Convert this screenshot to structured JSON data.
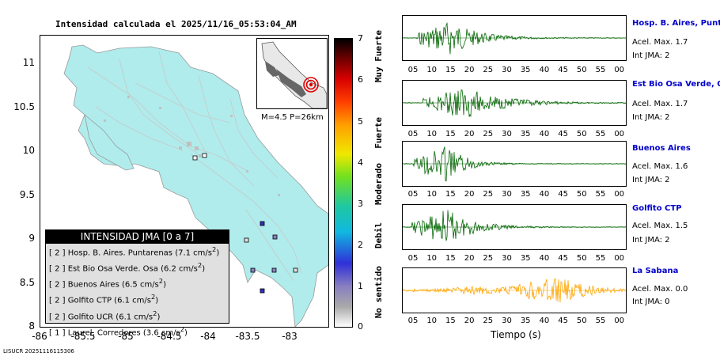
{
  "title": "Intensidad calculada el 2025/11/16_05:53:04_AM",
  "map": {
    "y_ticks": [
      "11",
      "10.5",
      "10",
      "9.5",
      "9",
      "8.5",
      "8"
    ],
    "x_ticks": [
      "-86",
      "-85.5",
      "-85",
      "-84.5",
      "-84",
      "-83.5",
      "-83"
    ],
    "inset_label": "M=4.5 P=26km"
  },
  "legend": {
    "title": "INTENSIDAD JMA [0 a 7]",
    "rows": [
      {
        "jma": "[ 2 ]",
        "text": "Hosp. B. Aires. Puntarenas (7.1 cm/s",
        "exp": "2",
        "close": ")"
      },
      {
        "jma": "[ 2 ]",
        "text": "Est Bio Osa Verde. Osa (6.2 cm/s",
        "exp": "2",
        "close": ")"
      },
      {
        "jma": "[ 2 ]",
        "text": "Buenos Aires (6.5 cm/s",
        "exp": "2",
        "close": ")"
      },
      {
        "jma": "[ 2 ]",
        "text": "Golfito CTP (6.1 cm/s",
        "exp": "2",
        "close": ")"
      },
      {
        "jma": "[ 2 ]",
        "text": "Golfito UCR (6.1 cm/s",
        "exp": "2",
        "close": ")"
      },
      {
        "jma": "[ 1 ]",
        "text": "Laurel. Corredores (3.6 cm/s",
        "exp": "2",
        "close": ")"
      }
    ]
  },
  "colorbar": {
    "ticks": [
      "7",
      "6",
      "5",
      "4",
      "3",
      "2",
      "1",
      "0"
    ],
    "categories": [
      "Muy Fuerte",
      "Fuerte",
      "Moderado",
      "Debil",
      "No sentido"
    ]
  },
  "footer": "LISUCR 20251116115306",
  "stations": [
    {
      "name": "Hosp. B. Aires, Puntare",
      "acel": "Acel. Max. 1.7",
      "int": "Int JMA: 2",
      "color": "#006400",
      "ticks": [
        "05",
        "10",
        "15",
        "20",
        "25",
        "30",
        "35",
        "40",
        "45",
        "50",
        "55",
        "00"
      ]
    },
    {
      "name": "Est Bio Osa Verde, Osa",
      "acel": "Acel. Max. 1.7",
      "int": "Int JMA: 2",
      "color": "#006400",
      "ticks": [
        "05",
        "10",
        "15",
        "20",
        "25",
        "30",
        "35",
        "40",
        "45",
        "50",
        "55",
        "00"
      ]
    },
    {
      "name": "Buenos Aires",
      "acel": "Acel. Max. 1.6",
      "int": "Int JMA: 2",
      "color": "#006400",
      "ticks": [
        "05",
        "10",
        "15",
        "20",
        "25",
        "30",
        "35",
        "40",
        "45",
        "50",
        "55",
        "00"
      ]
    },
    {
      "name": "Golfito CTP",
      "acel": "Acel. Max. 1.5",
      "int": "Int JMA: 2",
      "color": "#006400",
      "ticks": [
        "05",
        "10",
        "15",
        "20",
        "25",
        "30",
        "35",
        "40",
        "45",
        "50",
        "55",
        "00"
      ]
    },
    {
      "name": "La Sabana",
      "acel": "Acel. Max. 0.0",
      "int": "Int JMA: 0",
      "color": "#ffa500",
      "ticks": [
        "05",
        "10",
        "15",
        "20",
        "25",
        "30",
        "35",
        "40",
        "45",
        "50",
        "55",
        "00"
      ]
    }
  ],
  "traces_xlabel": "Tiempo (s)"
}
